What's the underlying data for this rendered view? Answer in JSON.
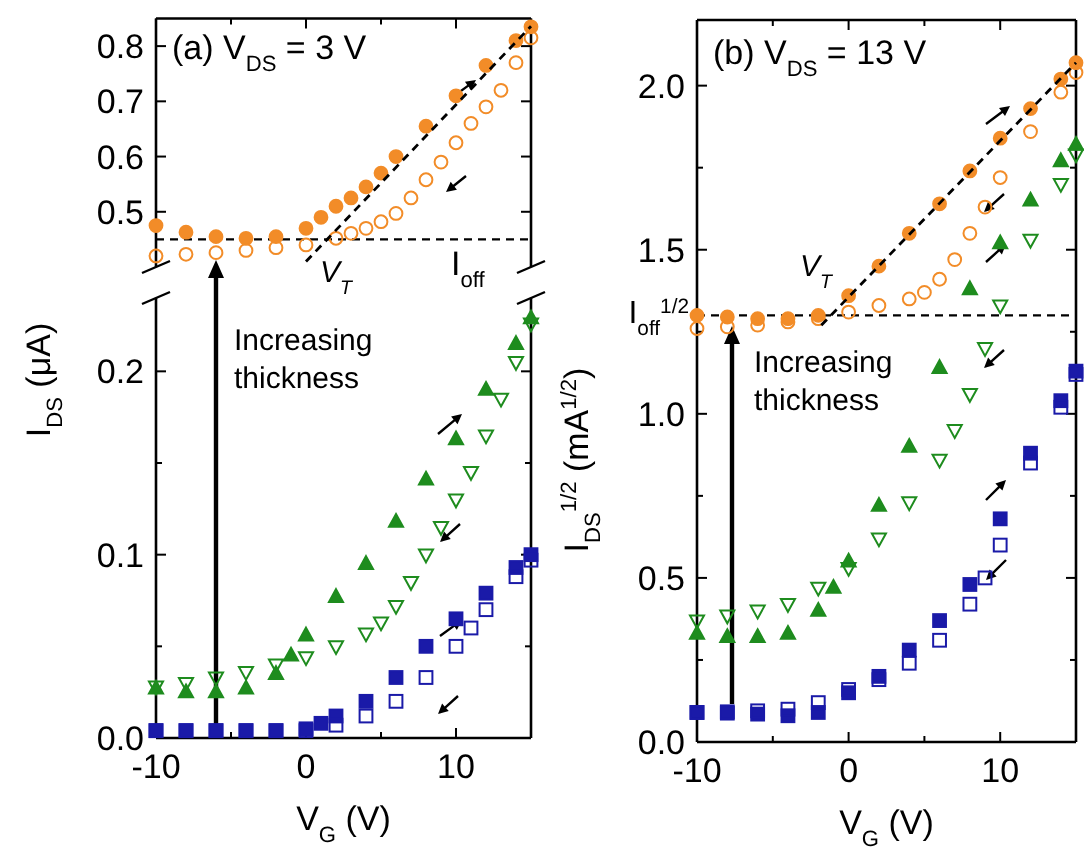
{
  "chart_data": [
    {
      "type": "scatter",
      "title": "(a) V$_{DS}$ = 3 V",
      "xlim": [
        -10,
        15
      ],
      "xticks": [
        -10,
        {
          "value": -5,
          "label": null
        },
        0,
        {
          "value": 5,
          "label": null
        },
        10,
        {
          "value": 15,
          "label": null
        }
      ],
      "ylim": [
        0.4,
        0.85
      ],
      "yticks": [
        0.5,
        0.6,
        0.7,
        0.8
      ],
      "tick_labels": "y",
      "ref_lines": [
        {
          "axis": "y",
          "value": 0.45,
          "label": "I$_{off}$",
          "line_style": "dashed",
          "color": "#000000"
        }
      ],
      "annotations": [
        "V$_{T}$"
      ],
      "series": [
        {
          "marker": "circle",
          "color": "#f28c28",
          "x": [
            -10,
            -8,
            -6,
            -4,
            -2,
            0,
            1,
            2,
            3,
            4,
            5,
            6,
            8,
            10,
            12,
            14,
            15
          ],
          "values": [
            0.475,
            0.463,
            0.455,
            0.452,
            0.455,
            0.47,
            0.49,
            0.51,
            0.525,
            0.545,
            0.57,
            0.6,
            0.655,
            0.71,
            0.765,
            0.81,
            0.835
          ]
        },
        {
          "marker": "circle-open",
          "color": "#f28c28",
          "x": [
            -10,
            -8,
            -6,
            -4,
            -2,
            0,
            2,
            3,
            4,
            5,
            6,
            7,
            8,
            9,
            10,
            11,
            12,
            13,
            14,
            15
          ],
          "values": [
            0.42,
            0.423,
            0.426,
            0.43,
            0.435,
            0.44,
            0.452,
            0.461,
            0.47,
            0.482,
            0.497,
            0.525,
            0.558,
            0.59,
            0.625,
            0.66,
            0.69,
            0.72,
            0.77,
            0.815
          ]
        },
        {
          "type": "line",
          "line_style": "dashed",
          "color": "#000000",
          "x": [
            0,
            15
          ],
          "values": [
            0.41,
            0.836
          ]
        }
      ]
    },
    {
      "type": "scatter",
      "xlabel": "V$_{G}$ (V)",
      "ylabel": "I$_{DS}$ (μA)",
      "xlim": [
        -10,
        15
      ],
      "xticks": [
        -10,
        {
          "value": -5,
          "label": null
        },
        0,
        {
          "value": 5,
          "label": null
        },
        10,
        {
          "value": 15,
          "label": null
        }
      ],
      "ylim": [
        0,
        0.24
      ],
      "yticks": [
        {
          "value": 0,
          "label": "0.0"
        },
        {
          "value": 0.05,
          "label": null
        },
        0.1,
        {
          "value": 0.15,
          "label": null
        },
        0.2
      ],
      "annotations": [
        "Increasing thickness"
      ],
      "series": [
        {
          "marker": "triangle",
          "color": "#1e8c1e",
          "x": [
            -10,
            -8,
            -6,
            -4,
            -2,
            -1,
            0,
            2,
            4,
            6,
            8,
            10,
            12,
            14,
            15
          ],
          "values": [
            0.027,
            0.025,
            0.025,
            0.027,
            0.035,
            0.045,
            0.056,
            0.077,
            0.095,
            0.118,
            0.141,
            0.163,
            0.19,
            0.215,
            0.229
          ]
        },
        {
          "marker": "triangle-down-open",
          "color": "#1e8c1e",
          "x": [
            -10,
            -8,
            -6,
            -4,
            -2,
            0,
            2,
            4,
            5,
            6,
            7,
            8,
            9,
            10,
            11,
            12,
            13,
            14,
            15
          ],
          "values": [
            0.028,
            0.03,
            0.033,
            0.036,
            0.04,
            0.044,
            0.05,
            0.057,
            0.063,
            0.072,
            0.085,
            0.1,
            0.115,
            0.13,
            0.145,
            0.165,
            0.185,
            0.205,
            0.226
          ]
        },
        {
          "marker": "square",
          "color": "#1a1aa8",
          "x": [
            -10,
            -8,
            -6,
            -4,
            -2,
            0,
            1,
            2,
            4,
            6,
            8,
            10,
            12,
            14,
            15
          ],
          "values": [
            0.004,
            0.004,
            0.004,
            0.004,
            0.004,
            0.005,
            0.008,
            0.012,
            0.02,
            0.033,
            0.05,
            0.065,
            0.079,
            0.093,
            0.1
          ]
        },
        {
          "marker": "square-open",
          "color": "#1a1aa8",
          "x": [
            -10,
            -8,
            -6,
            -4,
            -2,
            0,
            2,
            4,
            6,
            8,
            10,
            11,
            12,
            14,
            15
          ],
          "values": [
            0.004,
            0.004,
            0.004,
            0.004,
            0.004,
            0.004,
            0.007,
            0.012,
            0.02,
            0.033,
            0.05,
            0.06,
            0.07,
            0.088,
            0.097
          ]
        }
      ]
    },
    {
      "type": "scatter",
      "title": "(b) V$_{DS}$ = 13 V",
      "xlabel": "V$_{G}$ (V)",
      "ylabel": "I$_{DS}$$^{1/2}$ (mA$^{1/2}$)",
      "xlim": [
        -10,
        15
      ],
      "xticks": [
        -10,
        {
          "value": -5,
          "label": null
        },
        0,
        {
          "value": 5,
          "label": null
        },
        10,
        {
          "value": 15,
          "label": null
        }
      ],
      "ylim": [
        0,
        2.2
      ],
      "yticks": [
        {
          "value": 0,
          "label": "0.0"
        },
        {
          "value": 0.25,
          "label": null
        },
        {
          "value": 0.5,
          "label": "0.5"
        },
        {
          "value": 0.75,
          "label": null
        },
        {
          "value": 1,
          "label": "1.0"
        },
        {
          "value": 1.25,
          "label": null
        },
        {
          "value": 1.5,
          "label": "1.5"
        },
        {
          "value": 1.75,
          "label": null
        },
        {
          "value": 2,
          "label": "2.0"
        }
      ],
      "ref_lines": [
        {
          "axis": "y",
          "value": 1.3,
          "label": "I$_{off}$$^{1/2}$",
          "line_style": "dashed",
          "color": "#000000"
        }
      ],
      "annotations": [
        "V$_{T}$",
        "Increasing thickness"
      ],
      "series": [
        {
          "marker": "circle",
          "color": "#f28c28",
          "x": [
            -10,
            -8,
            -6,
            -4,
            -2,
            0,
            2,
            4,
            6,
            8,
            10,
            12,
            14,
            15
          ],
          "values": [
            1.3,
            1.295,
            1.29,
            1.29,
            1.3,
            1.36,
            1.45,
            1.55,
            1.64,
            1.74,
            1.84,
            1.93,
            2.02,
            2.07
          ]
        },
        {
          "marker": "circle-open",
          "color": "#f28c28",
          "x": [
            -10,
            -8,
            -6,
            -4,
            -2,
            0,
            2,
            4,
            5,
            6,
            7,
            8,
            9,
            10,
            12,
            14,
            15
          ],
          "values": [
            1.26,
            1.265,
            1.27,
            1.28,
            1.29,
            1.31,
            1.33,
            1.35,
            1.37,
            1.41,
            1.47,
            1.55,
            1.63,
            1.72,
            1.86,
            1.98,
            2.04
          ]
        },
        {
          "type": "line",
          "line_style": "dashed",
          "color": "#000000",
          "x": [
            -1.8,
            15
          ],
          "values": [
            1.27,
            2.07
          ]
        },
        {
          "marker": "triangle",
          "color": "#1e8c1e",
          "x": [
            -10,
            -8,
            -6,
            -4,
            -2,
            -1,
            0,
            2,
            4,
            6,
            8,
            10,
            12,
            14,
            15
          ],
          "values": [
            0.33,
            0.32,
            0.32,
            0.33,
            0.4,
            0.47,
            0.55,
            0.72,
            0.9,
            1.14,
            1.38,
            1.52,
            1.65,
            1.77,
            1.82
          ]
        },
        {
          "marker": "triangle-down-open",
          "color": "#1e8c1e",
          "x": [
            -10,
            -8,
            -6,
            -4,
            -2,
            0,
            2,
            4,
            6,
            7,
            8,
            9,
            10,
            12,
            14,
            15
          ],
          "values": [
            0.37,
            0.385,
            0.4,
            0.42,
            0.47,
            0.53,
            0.62,
            0.73,
            0.86,
            0.95,
            1.06,
            1.2,
            1.33,
            1.53,
            1.7,
            1.79
          ]
        },
        {
          "marker": "square",
          "color": "#1a1aa8",
          "x": [
            -10,
            -8,
            -6,
            -4,
            -2,
            0,
            2,
            4,
            6,
            8,
            10,
            12,
            14,
            15
          ],
          "values": [
            0.09,
            0.088,
            0.085,
            0.08,
            0.09,
            0.15,
            0.2,
            0.28,
            0.37,
            0.48,
            0.68,
            0.88,
            1.04,
            1.13
          ]
        },
        {
          "marker": "square-open",
          "color": "#1a1aa8",
          "x": [
            -10,
            -8,
            -6,
            -4,
            -2,
            0,
            2,
            4,
            6,
            8,
            9,
            10,
            12,
            14,
            15
          ],
          "values": [
            0.09,
            0.092,
            0.095,
            0.1,
            0.12,
            0.16,
            0.19,
            0.24,
            0.31,
            0.42,
            0.5,
            0.6,
            0.85,
            1.02,
            1.12
          ]
        }
      ]
    }
  ]
}
